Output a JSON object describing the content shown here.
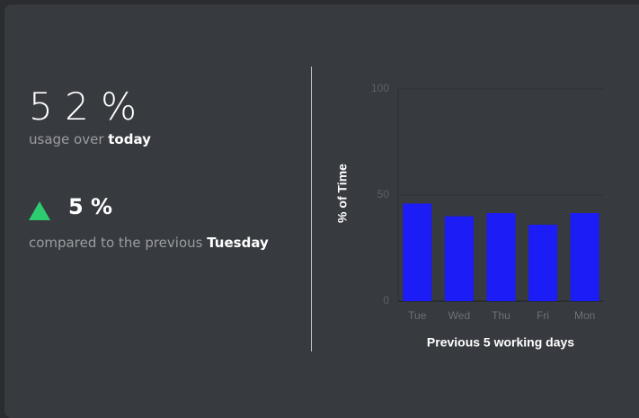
{
  "usage": {
    "value": "5 2 %",
    "label": "usage over ",
    "period": "today"
  },
  "change": {
    "value": "5 %",
    "label": "compared to the previous ",
    "period": "Tuesday"
  },
  "chart_data": {
    "type": "bar",
    "ylabel": "% of Time",
    "xlabel": "Previous 5 working days",
    "categories": [
      "Tue",
      "Wed",
      "Thu",
      "Fri",
      "Mon"
    ],
    "values": [
      46,
      40,
      41.5,
      36,
      41.5
    ],
    "color": "#1c1cf7",
    "ylim": [
      0,
      100
    ],
    "yticks": [
      0,
      50,
      100
    ],
    "grid": true
  }
}
